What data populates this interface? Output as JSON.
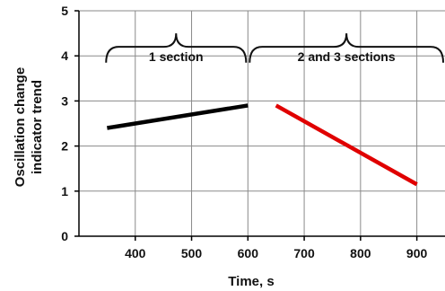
{
  "chart_data": {
    "type": "line",
    "title": "",
    "xlabel": "Time, s",
    "ylabel_lines": [
      "Oscillation change",
      "indicator trend"
    ],
    "xlim": [
      300,
      950
    ],
    "ylim": [
      0,
      5
    ],
    "x_ticks": [
      400,
      500,
      600,
      700,
      800,
      900
    ],
    "y_ticks": [
      0,
      1,
      2,
      3,
      4,
      5
    ],
    "grid": true,
    "series": [
      {
        "color": "#000000",
        "x": [
          350,
          600
        ],
        "y": [
          2.4,
          2.9
        ]
      },
      {
        "color": "#e00000",
        "x": [
          650,
          900
        ],
        "y": [
          2.9,
          1.15
        ]
      }
    ],
    "annotations": [
      {
        "text": "1 section",
        "x_start": 345,
        "x_end": 600
      },
      {
        "text": "2 and 3 sections",
        "x_start": 600,
        "x_end": 950
      }
    ]
  }
}
